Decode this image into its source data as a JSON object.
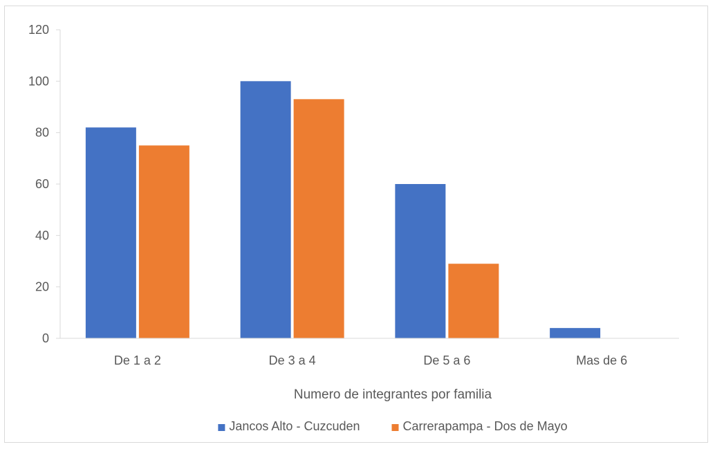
{
  "chart_data": {
    "type": "bar",
    "title": "",
    "xlabel": "Numero de integrantes por familia",
    "ylabel": "",
    "categories": [
      "De 1 a 2",
      "De 3 a 4",
      "De 5 a 6",
      "Mas de 6"
    ],
    "series": [
      {
        "name": "Jancos Alto - Cuzcuden",
        "color": "#4472C4",
        "values": [
          82,
          100,
          60,
          4
        ]
      },
      {
        "name": "Carrerapampa - Dos de Mayo",
        "color": "#ED7D31",
        "values": [
          75,
          93,
          29,
          0
        ]
      }
    ],
    "ylim": [
      0,
      120
    ],
    "yticks": [
      0,
      20,
      40,
      60,
      80,
      100,
      120
    ],
    "grid": false,
    "legend_position": "bottom"
  }
}
